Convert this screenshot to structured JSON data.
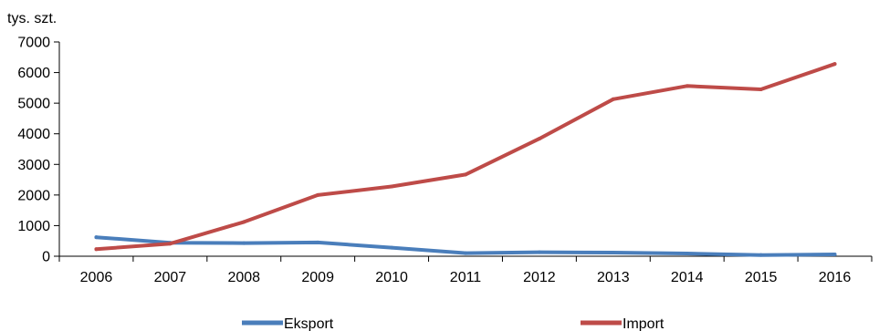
{
  "chart_data": {
    "type": "line",
    "title": "",
    "ylabel": "tys. szt.",
    "xlabel": "",
    "categories": [
      "2006",
      "2007",
      "2008",
      "2009",
      "2010",
      "2011",
      "2012",
      "2013",
      "2014",
      "2015",
      "2016"
    ],
    "y_ticks": [
      "0",
      "1000",
      "2000",
      "3000",
      "4000",
      "5000",
      "6000",
      "7000"
    ],
    "ylim": [
      0,
      7000
    ],
    "grid": false,
    "legend_position": "bottom",
    "series": [
      {
        "name": "Eksport",
        "color": "#4a7ebb",
        "values": [
          620,
          440,
          430,
          450,
          280,
          100,
          130,
          120,
          90,
          40,
          60
        ]
      },
      {
        "name": "Import",
        "color": "#be4b48",
        "values": [
          230,
          410,
          1120,
          2000,
          2280,
          2670,
          3840,
          5130,
          5560,
          5450,
          6280
        ]
      }
    ]
  }
}
